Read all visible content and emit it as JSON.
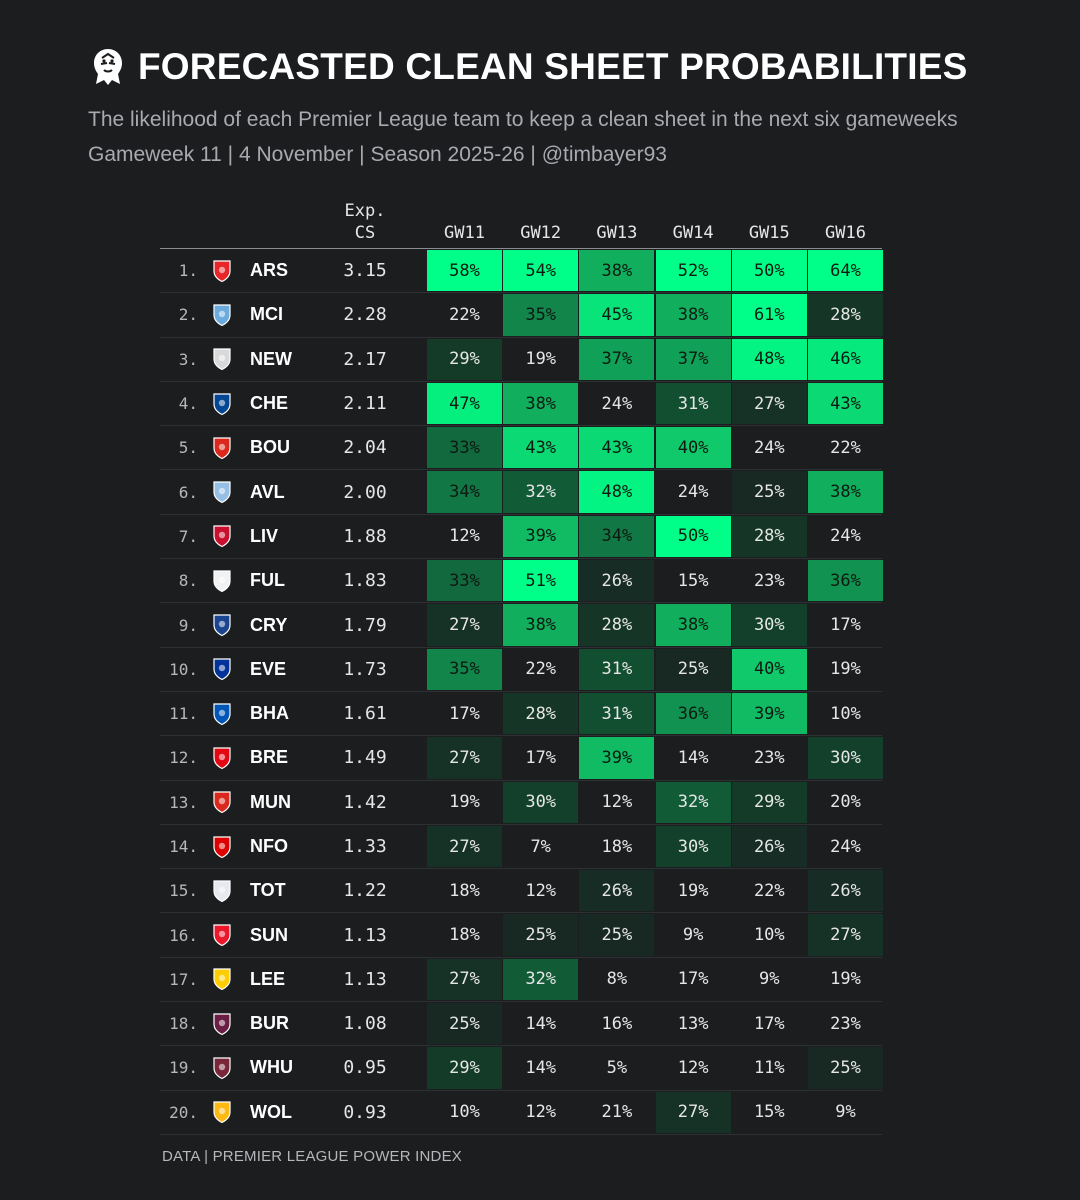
{
  "title": "FORECASTED CLEAN SHEET PROBABILITIES",
  "subtitle_line1": "The likelihood of each Premier League team to keep a clean sheet in the next six gameweeks",
  "subtitle_line2": "Gameweek 11 | 4 November | Season 2025-26 | @timbayer93",
  "footer": "DATA | PREMIER LEAGUE POWER INDEX",
  "logo_icon": "premier-league-lion-icon",
  "colors": {
    "background": "#1b1d1f",
    "high": "#00ff88",
    "mid": "#10c96a",
    "low": "#12402a"
  },
  "chart_data": {
    "type": "table",
    "title": "FORECASTED CLEAN SHEET PROBABILITIES",
    "columns": {
      "exp_cs": "Exp.\nCS",
      "gameweeks": [
        "GW11",
        "GW12",
        "GW13",
        "GW14",
        "GW15",
        "GW16"
      ]
    },
    "rows": [
      {
        "rank": "1.",
        "team": "ARS",
        "crest": "arsenal-crest-icon",
        "crest_color": "#e8262a",
        "exp_cs": "3.15",
        "values": [
          58,
          54,
          38,
          52,
          50,
          64
        ]
      },
      {
        "rank": "2.",
        "team": "MCI",
        "crest": "man-city-crest-icon",
        "crest_color": "#6cabdd",
        "exp_cs": "2.28",
        "values": [
          22,
          35,
          45,
          38,
          61,
          28
        ]
      },
      {
        "rank": "3.",
        "team": "NEW",
        "crest": "newcastle-crest-icon",
        "crest_color": "#d9d9d9",
        "exp_cs": "2.17",
        "values": [
          29,
          19,
          37,
          37,
          48,
          46
        ]
      },
      {
        "rank": "4.",
        "team": "CHE",
        "crest": "chelsea-crest-icon",
        "crest_color": "#034694",
        "exp_cs": "2.11",
        "values": [
          47,
          38,
          24,
          31,
          27,
          43
        ]
      },
      {
        "rank": "5.",
        "team": "BOU",
        "crest": "bournemouth-crest-icon",
        "crest_color": "#da291c",
        "exp_cs": "2.04",
        "values": [
          33,
          43,
          43,
          40,
          24,
          22
        ]
      },
      {
        "rank": "6.",
        "team": "AVL",
        "crest": "aston-villa-crest-icon",
        "crest_color": "#95bfe5",
        "exp_cs": "2.00",
        "values": [
          34,
          32,
          48,
          24,
          25,
          38
        ]
      },
      {
        "rank": "7.",
        "team": "LIV",
        "crest": "liverpool-crest-icon",
        "crest_color": "#c8102e",
        "exp_cs": "1.88",
        "values": [
          12,
          39,
          34,
          50,
          28,
          24
        ]
      },
      {
        "rank": "8.",
        "team": "FUL",
        "crest": "fulham-crest-icon",
        "crest_color": "#f2f2f2",
        "exp_cs": "1.83",
        "values": [
          33,
          51,
          26,
          15,
          23,
          36
        ]
      },
      {
        "rank": "9.",
        "team": "CRY",
        "crest": "crystal-palace-crest-icon",
        "crest_color": "#1b458f",
        "exp_cs": "1.79",
        "values": [
          27,
          38,
          28,
          38,
          30,
          17
        ]
      },
      {
        "rank": "10.",
        "team": "EVE",
        "crest": "everton-crest-icon",
        "crest_color": "#003399",
        "exp_cs": "1.73",
        "values": [
          35,
          22,
          31,
          25,
          40,
          19
        ]
      },
      {
        "rank": "11.",
        "team": "BHA",
        "crest": "brighton-crest-icon",
        "crest_color": "#0057b8",
        "exp_cs": "1.61",
        "values": [
          17,
          28,
          31,
          36,
          39,
          10
        ]
      },
      {
        "rank": "12.",
        "team": "BRE",
        "crest": "brentford-crest-icon",
        "crest_color": "#e30613",
        "exp_cs": "1.49",
        "values": [
          27,
          17,
          39,
          14,
          23,
          30
        ]
      },
      {
        "rank": "13.",
        "team": "MUN",
        "crest": "man-united-crest-icon",
        "crest_color": "#da291c",
        "exp_cs": "1.42",
        "values": [
          19,
          30,
          12,
          32,
          29,
          20
        ]
      },
      {
        "rank": "14.",
        "team": "NFO",
        "crest": "nottingham-forest-crest-icon",
        "crest_color": "#dd0000",
        "exp_cs": "1.33",
        "values": [
          27,
          7,
          18,
          30,
          26,
          24
        ]
      },
      {
        "rank": "15.",
        "team": "TOT",
        "crest": "tottenham-crest-icon",
        "crest_color": "#e8e8f0",
        "exp_cs": "1.22",
        "values": [
          18,
          12,
          26,
          19,
          22,
          26
        ]
      },
      {
        "rank": "16.",
        "team": "SUN",
        "crest": "sunderland-crest-icon",
        "crest_color": "#eb172b",
        "exp_cs": "1.13",
        "values": [
          18,
          25,
          25,
          9,
          10,
          27
        ]
      },
      {
        "rank": "17.",
        "team": "LEE",
        "crest": "leeds-crest-icon",
        "crest_color": "#ffcd00",
        "exp_cs": "1.13",
        "values": [
          27,
          32,
          8,
          17,
          9,
          19
        ]
      },
      {
        "rank": "18.",
        "team": "BUR",
        "crest": "burnley-crest-icon",
        "crest_color": "#6c1d45",
        "exp_cs": "1.08",
        "values": [
          25,
          14,
          16,
          13,
          17,
          23
        ]
      },
      {
        "rank": "19.",
        "team": "WHU",
        "crest": "west-ham-crest-icon",
        "crest_color": "#7a263a",
        "exp_cs": "0.95",
        "values": [
          29,
          14,
          5,
          12,
          11,
          25
        ]
      },
      {
        "rank": "20.",
        "team": "WOL",
        "crest": "wolves-crest-icon",
        "crest_color": "#fdb913",
        "exp_cs": "0.93",
        "values": [
          10,
          12,
          21,
          27,
          15,
          9
        ]
      }
    ],
    "value_suffix": "%"
  }
}
